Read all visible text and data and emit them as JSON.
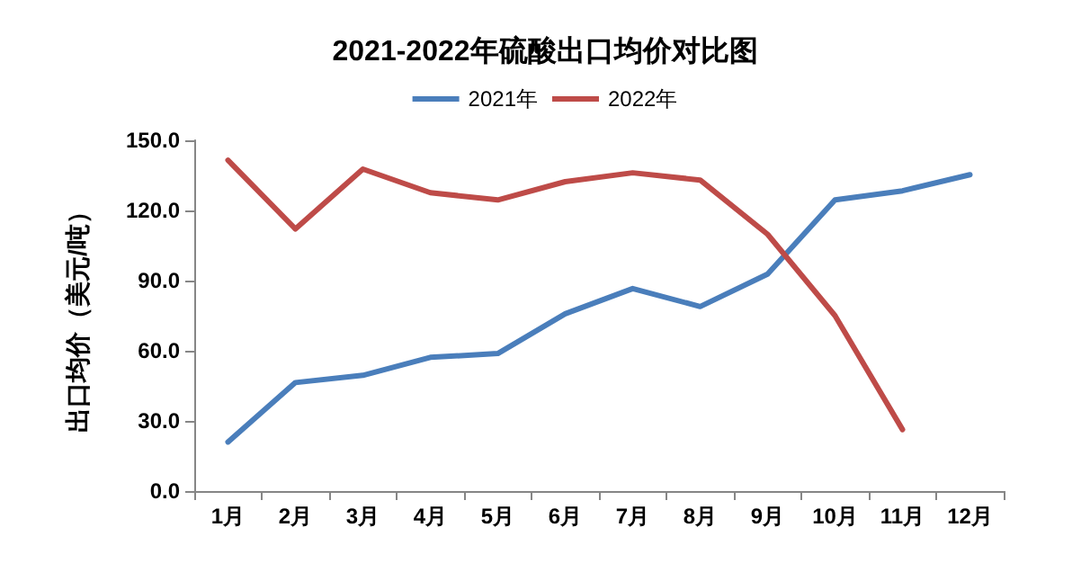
{
  "chart_data": {
    "type": "line",
    "title": "2021-2022年硫酸出口均价对比图",
    "ylabel": "出口均价（美元/吨）",
    "categories": [
      "1月",
      "2月",
      "3月",
      "4月",
      "5月",
      "6月",
      "7月",
      "8月",
      "9月",
      "10月",
      "11月",
      "12月"
    ],
    "series": [
      {
        "name": "2021年",
        "color": "#4a7ebb",
        "values": [
          21,
          46.4,
          49.5,
          57.2,
          58.8,
          75.8,
          86.6,
          78.9,
          92.8,
          124.5,
          128.4,
          135.3
        ]
      },
      {
        "name": "2022年",
        "color": "#be4b48",
        "values": [
          141.5,
          112.1,
          137.7,
          127.6,
          124.5,
          132.3,
          136.1,
          133,
          109.8,
          75,
          26.3,
          null
        ]
      }
    ],
    "ylim": [
      0,
      150
    ],
    "yticks": [
      {
        "value": 0,
        "label": "0.0"
      },
      {
        "value": 30,
        "label": "30.0"
      },
      {
        "value": 60,
        "label": "60.0"
      },
      {
        "value": 90,
        "label": "90.0"
      },
      {
        "value": 120,
        "label": "120.0"
      },
      {
        "value": 150,
        "label": "150.0"
      }
    ],
    "grid": false,
    "legend": "top",
    "marker": "none",
    "line_style": "solid"
  }
}
